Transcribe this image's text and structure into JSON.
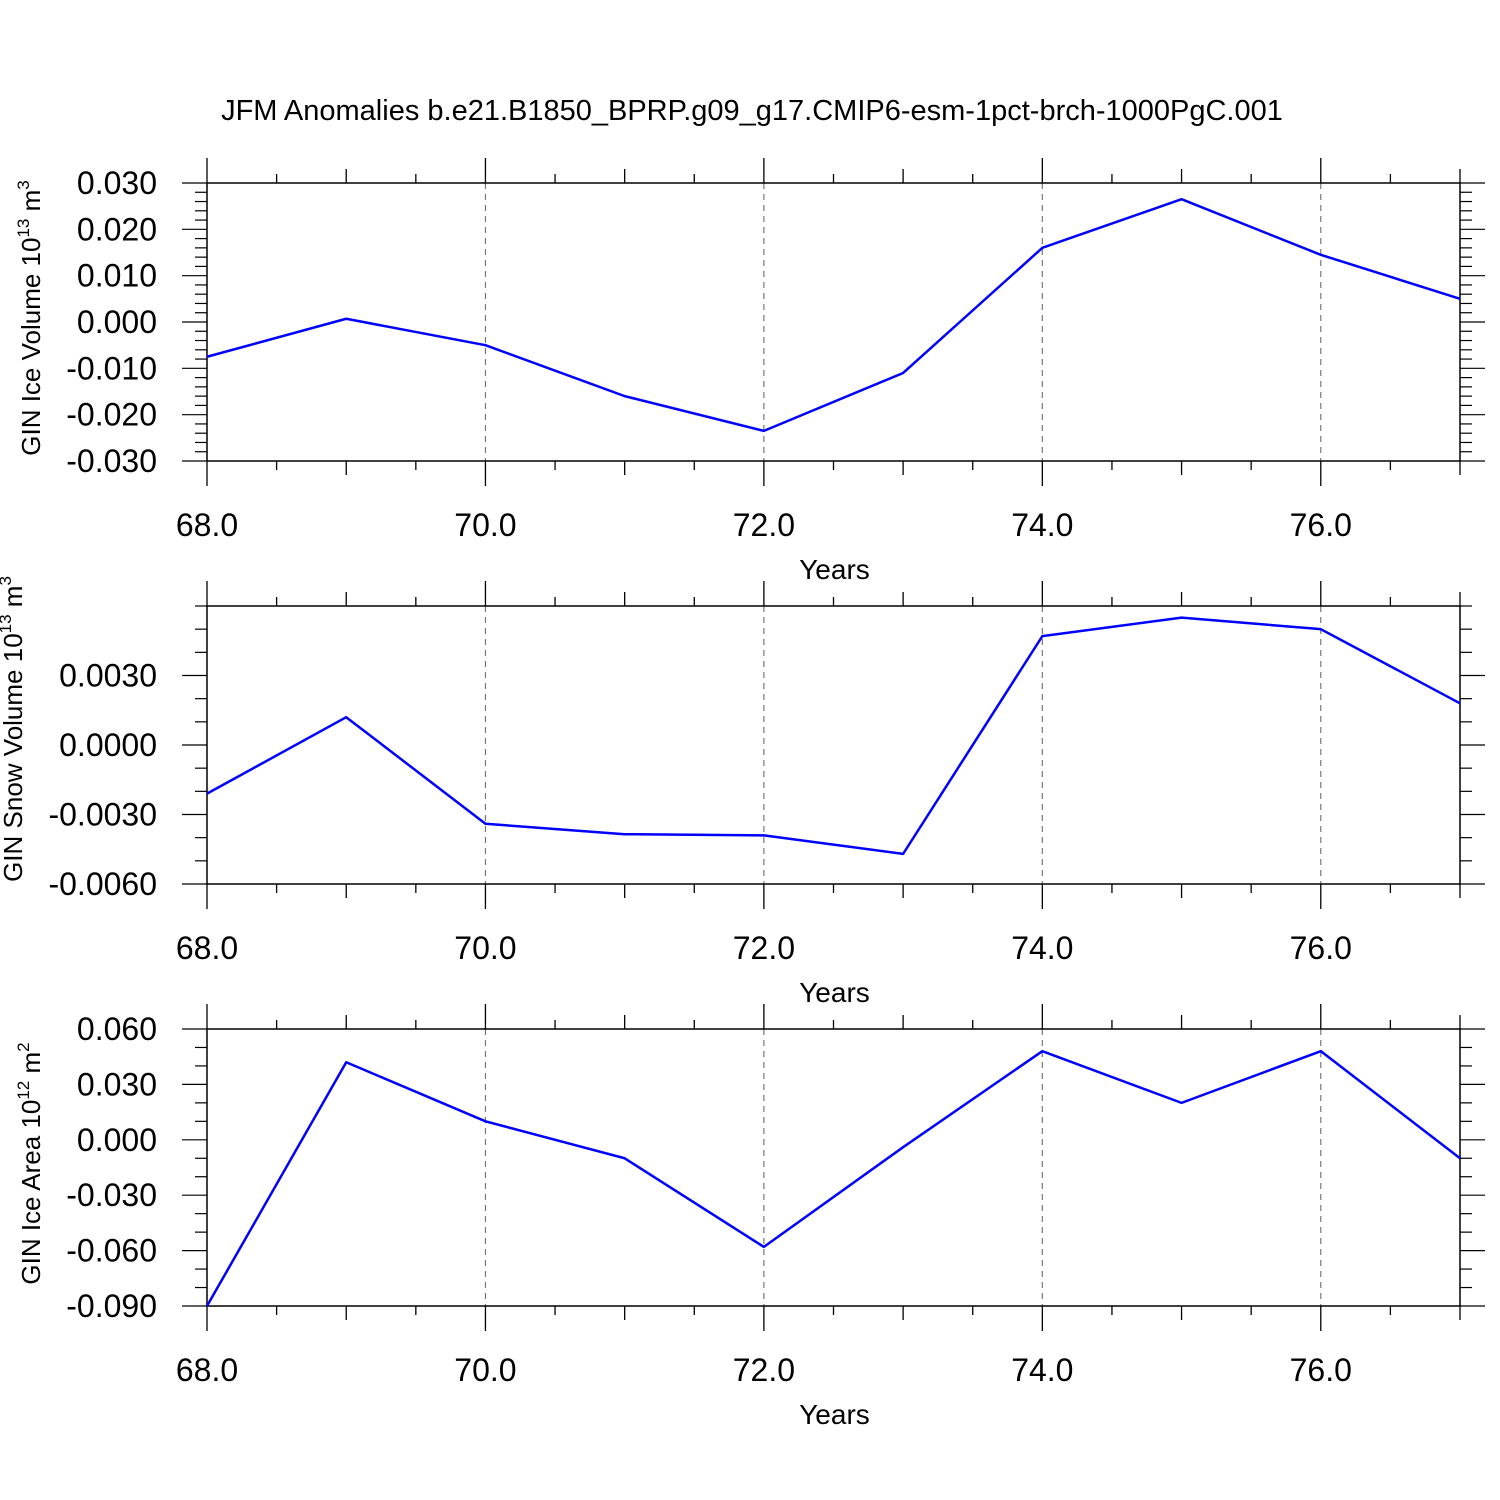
{
  "title": "JFM Anomalies b.e21.B1850_BPRP.g09_g17.CMIP6-esm-1pct-brch-1000PgC.001",
  "chart_data": [
    {
      "type": "line",
      "xlabel": "Years",
      "ylabel": {
        "text": "GIN Ice Volume 10",
        "exp": "13",
        "unit": " m",
        "unit_exp": "3"
      },
      "x": [
        68,
        69,
        70,
        71,
        72,
        73,
        74,
        75,
        76,
        77
      ],
      "series": [
        {
          "values": [
            -0.0075,
            0.0007,
            -0.005,
            -0.016,
            -0.0235,
            -0.011,
            0.016,
            0.0265,
            0.0145,
            0.005
          ],
          "color": "#0000ff"
        }
      ],
      "xlim": [
        68,
        77
      ],
      "ylim": [
        -0.03,
        0.03
      ],
      "xticks": [
        68,
        70,
        72,
        74,
        76
      ],
      "xtick_labels": [
        "68.0",
        "70.0",
        "72.0",
        "74.0",
        "76.0"
      ],
      "yticks": [
        -0.03,
        -0.02,
        -0.01,
        0,
        0.01,
        0.02,
        0.03
      ],
      "ytick_labels": [
        "-0.030",
        "-0.020",
        "-0.010",
        "0.000",
        "0.010",
        "0.020",
        "0.030"
      ],
      "y_minor_step": 0.002,
      "grid": "vertical dashed at major x ticks"
    },
    {
      "type": "line",
      "xlabel": "Years",
      "ylabel": {
        "text": "GIN Snow Volume 10",
        "exp": "13",
        "unit": " m",
        "unit_exp": "3"
      },
      "x": [
        68,
        69,
        70,
        71,
        72,
        73,
        74,
        75,
        76,
        77
      ],
      "series": [
        {
          "values": [
            -0.0021,
            0.0012,
            -0.0034,
            -0.00385,
            -0.0039,
            -0.0047,
            0.0047,
            0.0055,
            0.005,
            0.0018
          ],
          "color": "#0000ff"
        }
      ],
      "xlim": [
        68,
        77
      ],
      "ylim": [
        -0.006,
        0.006
      ],
      "xticks": [
        68,
        70,
        72,
        74,
        76
      ],
      "xtick_labels": [
        "68.0",
        "70.0",
        "72.0",
        "74.0",
        "76.0"
      ],
      "yticks": [
        -0.006,
        -0.003,
        0,
        0.003
      ],
      "ytick_labels": [
        "-0.0060",
        "-0.0030",
        "0.0000",
        "0.0030"
      ],
      "y_minor_step": 0.001,
      "grid": "vertical dashed at major x ticks"
    },
    {
      "type": "line",
      "xlabel": "Years",
      "ylabel": {
        "text": "GIN Ice Area 10",
        "exp": "12",
        "unit": " m",
        "unit_exp": "2"
      },
      "x": [
        68,
        69,
        70,
        71,
        72,
        73,
        74,
        75,
        76,
        77
      ],
      "series": [
        {
          "values": [
            -0.09,
            0.042,
            0.01,
            -0.01,
            -0.058,
            -0.004,
            0.048,
            0.02,
            0.048,
            -0.01
          ],
          "color": "#0000ff"
        }
      ],
      "xlim": [
        68,
        77
      ],
      "ylim": [
        -0.09,
        0.06
      ],
      "xticks": [
        68,
        70,
        72,
        74,
        76
      ],
      "xtick_labels": [
        "68.0",
        "70.0",
        "72.0",
        "74.0",
        "76.0"
      ],
      "yticks": [
        -0.09,
        -0.06,
        -0.03,
        0,
        0.03,
        0.06
      ],
      "ytick_labels": [
        "-0.090",
        "-0.060",
        "-0.030",
        "0.000",
        "0.030",
        "0.060"
      ],
      "y_minor_step": 0.01,
      "grid": "vertical dashed at major x ticks"
    }
  ]
}
